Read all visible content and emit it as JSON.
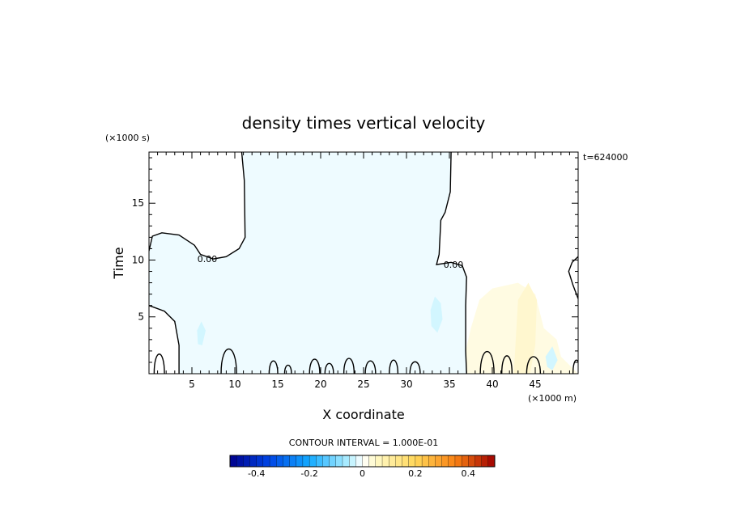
{
  "chart_data": {
    "type": "contour",
    "title": "density times vertical velocity",
    "xlabel": "X coordinate",
    "ylabel": "Time",
    "x_units": "(×1000 m)",
    "y_units": "(×1000 s)",
    "time_stamp": "t=624000",
    "xlim": [
      0,
      50
    ],
    "ylim": [
      0,
      19.5
    ],
    "x_ticks": [
      "5",
      "10",
      "15",
      "20",
      "25",
      "30",
      "35",
      "40",
      "45"
    ],
    "y_ticks": [
      "5",
      "10",
      "15"
    ],
    "contour_label": "0.00",
    "contour_interval_text": "CONTOUR INTERVAL = 1.000E-01",
    "colorbar": {
      "min": -0.5,
      "max": 0.5,
      "ticks": [
        "-0.4",
        "-0.2",
        "0",
        "0.2",
        "0.4"
      ],
      "tick_values": [
        -0.4,
        -0.2,
        0,
        0.2,
        0.4
      ]
    },
    "zero_contours": [
      [
        [
          0,
          10.8
        ],
        [
          0.4,
          12.1
        ],
        [
          1.5,
          12.4
        ],
        [
          3.5,
          12.2
        ],
        [
          5.3,
          11.3
        ],
        [
          6,
          10.5
        ],
        [
          7.5,
          10.1
        ],
        [
          9,
          10.3
        ],
        [
          10.5,
          11.0
        ],
        [
          11.2,
          12.0
        ],
        [
          11.1,
          17
        ],
        [
          10.8,
          19.5
        ]
      ],
      [
        [
          0,
          6
        ],
        [
          1.8,
          5.5
        ],
        [
          3,
          4.6
        ],
        [
          3.5,
          2.5
        ],
        [
          3.5,
          0
        ]
      ],
      [
        [
          35.2,
          19.5
        ],
        [
          35.1,
          16
        ],
        [
          34.5,
          14.2
        ],
        [
          34.0,
          13.5
        ],
        [
          33.8,
          10.5
        ],
        [
          33.5,
          9.6
        ],
        [
          35.2,
          9.8
        ],
        [
          36.5,
          9.5
        ],
        [
          37.0,
          8.5
        ],
        [
          36.9,
          6
        ],
        [
          36.9,
          2
        ],
        [
          37.0,
          0
        ]
      ],
      [
        [
          50,
          10.3
        ],
        [
          49.3,
          9.8
        ],
        [
          48.9,
          9
        ],
        [
          49.4,
          7.8
        ],
        [
          50,
          6.6
        ]
      ]
    ],
    "shaded_regions": [
      {
        "sign": "negative",
        "level": "0 to -0.1",
        "note": "broad region"
      },
      {
        "sign": "positive",
        "level": "0 to 0.1",
        "note": "x 37-50, t 0-8"
      }
    ],
    "colors": {
      "neg_light": "#eefbff",
      "neg_mid": "#d2f6ff",
      "pos_light": "#fffbe2",
      "contour": "#000000"
    }
  }
}
